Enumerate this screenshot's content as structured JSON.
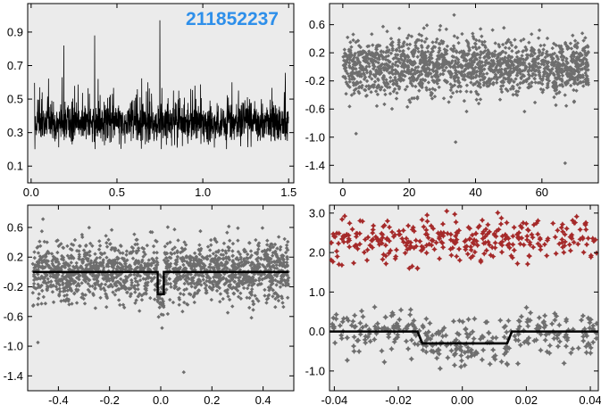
{
  "colors": {
    "panel_bg": "#ebebeb",
    "points_gray": "#6e6e6e",
    "points_red": "#a52a2a",
    "line_black": "#000000",
    "star_label": "#2e8fea"
  },
  "chart_data": [
    {
      "id": "periodogram",
      "type": "line",
      "annotation": "211852237",
      "xlim": [
        -0.02,
        1.53
      ],
      "ylim": [
        0.0,
        1.07
      ],
      "xticks": [
        0.0,
        0.5,
        1.0,
        1.5
      ],
      "xtick_labels": [
        "0.0",
        "0.5",
        "1.0",
        "1.5"
      ],
      "yticks": [
        0.1,
        0.3,
        0.5,
        0.7,
        0.9
      ],
      "ytick_labels": [
        "0.1",
        "0.3",
        "0.5",
        "0.7",
        "0.9"
      ],
      "x_range": [
        0.02,
        1.5
      ],
      "baseline": 0.36,
      "noise_amplitude": 0.06,
      "peaks": [
        {
          "x": 0.19,
          "y": 0.82
        },
        {
          "x": 0.37,
          "y": 0.88
        },
        {
          "x": 0.39,
          "y": 0.62
        },
        {
          "x": 0.75,
          "y": 0.97
        },
        {
          "x": 0.18,
          "y": 0.63
        },
        {
          "x": 0.68,
          "y": 0.6
        },
        {
          "x": 1.17,
          "y": 0.6
        },
        {
          "x": 0.93,
          "y": 0.56
        },
        {
          "x": 1.48,
          "y": 0.58
        },
        {
          "x": 0.05,
          "y": 0.57
        }
      ]
    },
    {
      "id": "light_curve",
      "type": "scatter",
      "xlim": [
        -4,
        77
      ],
      "ylim": [
        -1.65,
        0.9
      ],
      "xticks": [
        0,
        20,
        40,
        60,
        80
      ],
      "xtick_labels": [
        "0",
        "20",
        "40",
        "60",
        "80"
      ],
      "yticks": [
        -1.4,
        -1.0,
        -0.6,
        -0.2,
        0.2,
        0.6
      ],
      "ytick_labels": [
        "-1.4",
        "-1.0",
        "-0.6",
        "-0.2",
        "0.2",
        "0.6"
      ],
      "x_range": [
        0,
        74
      ],
      "n_points": 1700,
      "center": 0.0,
      "spread": 0.2,
      "outliers": [
        {
          "x": 34,
          "y": -1.07
        },
        {
          "x": 67,
          "y": -1.37
        },
        {
          "x": 4,
          "y": -0.95
        }
      ]
    },
    {
      "id": "phase_folded",
      "type": "scatter",
      "xlim": [
        -0.52,
        0.52
      ],
      "ylim": [
        -1.6,
        0.9
      ],
      "xticks": [
        -0.4,
        -0.2,
        0.0,
        0.2,
        0.4
      ],
      "xtick_labels": [
        "-0.4",
        "-0.2",
        "0.0",
        "0.2",
        "0.4"
      ],
      "yticks": [
        -1.4,
        -1.0,
        -0.6,
        -0.2,
        0.2,
        0.6
      ],
      "ytick_labels": [
        "-1.4",
        "-1.0",
        "-0.6",
        "-0.2",
        "0.2",
        "0.6"
      ],
      "x_range": [
        -0.5,
        0.5
      ],
      "n_points": 1700,
      "center": 0.0,
      "spread": 0.2,
      "model": {
        "x": [
          -0.5,
          -0.012,
          -0.012,
          0.012,
          0.012,
          0.5
        ],
        "y": [
          0.0,
          0.0,
          -0.3,
          -0.3,
          0.0,
          0.0
        ]
      },
      "outliers": [
        {
          "x": 0.09,
          "y": -1.35
        },
        {
          "x": -0.48,
          "y": -0.95
        }
      ]
    },
    {
      "id": "transit_zoom",
      "type": "scatter",
      "xlim": [
        -0.0415,
        0.0425
      ],
      "ylim": [
        -1.5,
        3.2
      ],
      "xticks": [
        -0.04,
        -0.02,
        0.0,
        0.02,
        0.04
      ],
      "xtick_labels": [
        "-0.04",
        "-0.02",
        "0.00",
        "0.02",
        "0.04"
      ],
      "yticks": [
        -1.0,
        0.0,
        1.0,
        2.0,
        3.0
      ],
      "ytick_labels": [
        "-1.0",
        "0.0",
        "1.0",
        "2.0",
        "3.0"
      ],
      "x_range": [
        -0.041,
        0.042
      ],
      "upper_series": {
        "n_points": 330,
        "center": 2.3,
        "spread": 0.28
      },
      "lower_series": {
        "n_points": 330,
        "spread": 0.28,
        "transit_start": -0.013,
        "transit_end": 0.015,
        "transit_depth": -0.3
      },
      "model": {
        "x": [
          -0.0415,
          -0.014,
          -0.0125,
          0.014,
          0.0155,
          0.0425
        ],
        "y": [
          0.0,
          0.0,
          -0.3,
          -0.3,
          0.0,
          0.0
        ]
      }
    }
  ]
}
